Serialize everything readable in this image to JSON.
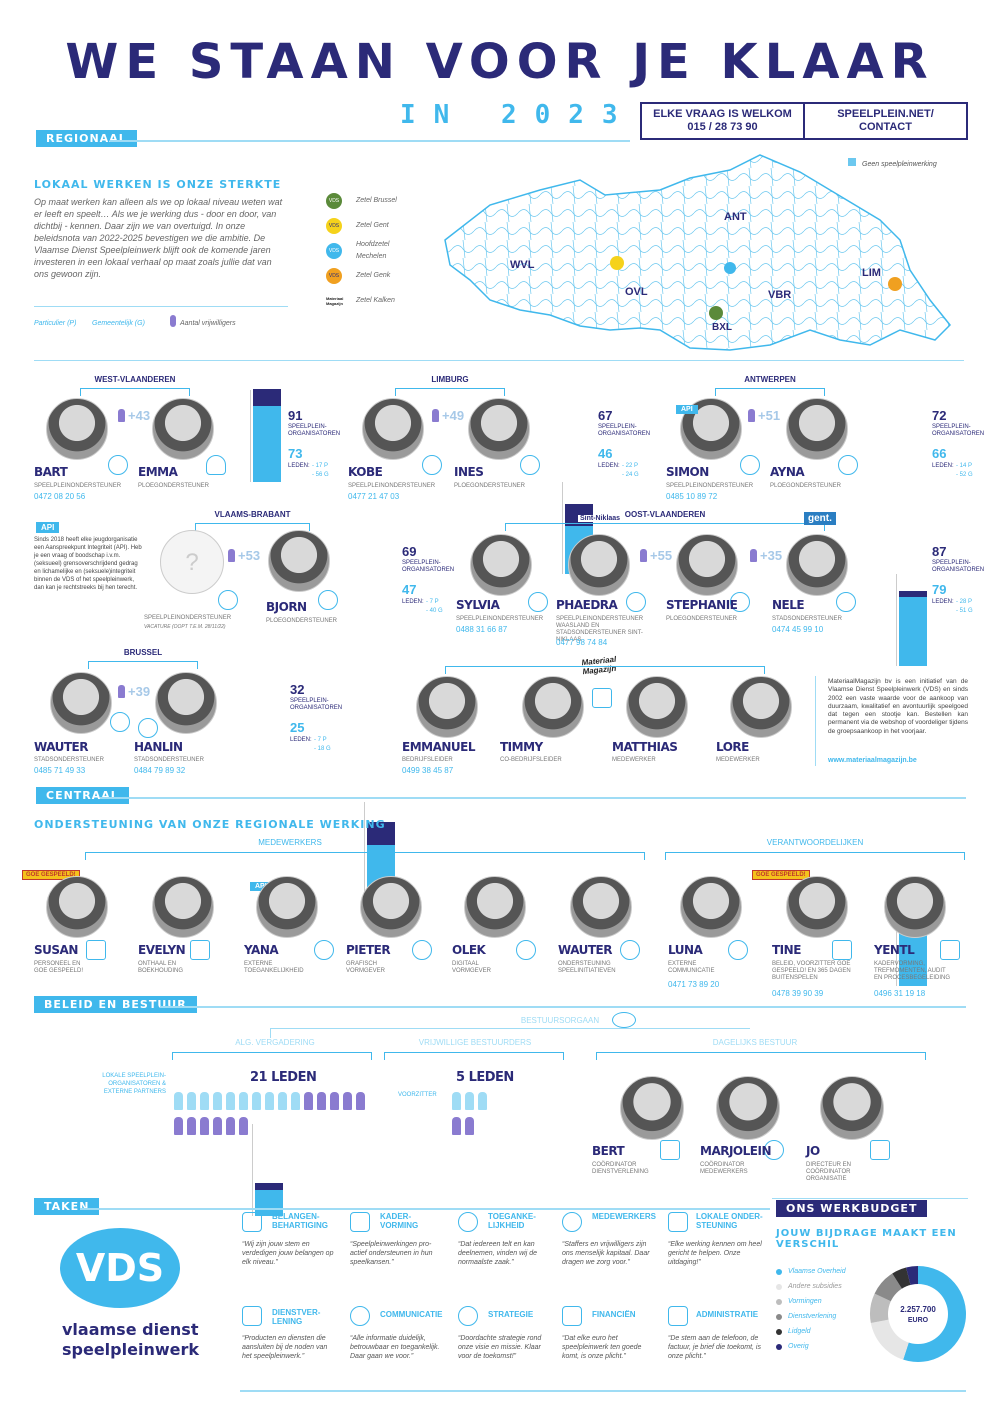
{
  "header": {
    "title": "WE STAAN VOOR JE KLAAR",
    "year": "IN 2023",
    "contact_left": "ELKE VRAAG IS WELKOM",
    "phone": "015 / 28 73 90",
    "contact_right": "SPEELPLEIN.NET/",
    "contact_right2": "CONTACT"
  },
  "regional": {
    "tag": "REGIONAAL",
    "subtitle": "LOKAAL WERKEN IS ONZE STERKTE",
    "intro": "Op maat werken kan alleen als we op lokaal niveau weten wat er leeft en speelt… Als we je werking dus - door en door, van dichtbij - kennen. Daar zijn we van overtuigd. In onze beleidsnota van 2022-2025 bevestigen we die ambitie. De Vlaamse Dienst Speelpleinwerk blijft ook de komende jaren investeren in een lokaal verhaal op maat zoals jullie dat van ons gewoon zijn.",
    "legend_p": "Particulier (P)",
    "legend_g": "Gemeentelijk (G)",
    "legend_vol": "Aantal vrijwilligers"
  },
  "map": {
    "no_speelplein": "Geen speelpleinwerking",
    "seats": [
      "Zetel Brussel",
      "Zetel Gent",
      "Hoofdzetel Mechelen",
      "Zetel Genk",
      "Zetel Kalken"
    ],
    "provinces": [
      "WVL",
      "OVL",
      "ANT",
      "VBR",
      "LIM",
      "BXL"
    ],
    "seat_logos": [
      "VDS",
      "VDS",
      "VDS",
      "VDS",
      "Materiaal Magazijn"
    ]
  },
  "regions": {
    "wvl": {
      "name": "WEST-VLAANDEREN",
      "plus": "+43",
      "p1": {
        "name": "BART",
        "role": "SPEELPLEINONDERSTEUNER",
        "phone": "0472 08 20 56"
      },
      "p2": {
        "name": "EMMA",
        "role": "PLOEGONDERSTEUNER"
      },
      "orgs": "91",
      "members": "73",
      "label": "SPEELPLEIN-ORGANISATOREN",
      "leden": "LEDEN:",
      "p": "- 17 P",
      "g": "- 56 G"
    },
    "lim": {
      "name": "LIMBURG",
      "plus": "+49",
      "p1": {
        "name": "KOBE",
        "role": "SPEELPLEINONDERSTEUNER",
        "phone": "0477 21 47 03"
      },
      "p2": {
        "name": "INES",
        "role": "PLOEGONDERSTEUNER"
      },
      "orgs": "67",
      "members": "46",
      "label": "SPEELPLEIN-ORGANISATOREN",
      "leden": "LEDEN:",
      "p": "- 22 P",
      "g": "- 24 G"
    },
    "ant": {
      "name": "ANTWERPEN",
      "plus": "+51",
      "p1": {
        "name": "SIMON",
        "role": "SPEELPLEINONDERSTEUNER",
        "phone": "0485 10 89 72"
      },
      "p2": {
        "name": "AYNA",
        "role": "PLOEGONDERSTEUNER"
      },
      "orgs": "72",
      "members": "66",
      "label": "SPEELPLEIN-ORGANISATOREN",
      "leden": "LEDEN:",
      "p": "- 14 P",
      "g": "- 52 G",
      "api": "API"
    },
    "vbr": {
      "name": "VLAAMS-BRABANT",
      "plus": "+53",
      "p0": {
        "role": "SPEELPLEINONDERSTEUNER",
        "note": "VACATURE (OOPT T.E.M. 28/11/22)"
      },
      "p2": {
        "name": "BJORN",
        "role": "PLOEGONDERSTEUNER"
      },
      "orgs": "69",
      "members": "47",
      "label": "SPEELPLEIN-ORGANISATOREN",
      "leden": "LEDEN:",
      "p": "- 7 P",
      "g": "- 40 G"
    },
    "ovl": {
      "name": "OOST-VLAANDEREN",
      "plus1": "+55",
      "plus2": "+35",
      "p1": {
        "name": "SYLVIA",
        "role": "SPEELPLEINONDERSTEUNER",
        "phone": "0488 31 66 87"
      },
      "p2": {
        "name": "PHAEDRA",
        "role": "SPEELPLEINONDERSTEUNER WAASLAND EN STADSONDERSTEUNER SINT-NIKLAAS",
        "phone": "0477 98 74 84"
      },
      "p3": {
        "name": "STEPHANIE",
        "role": "PLOEGONDERSTEUNER"
      },
      "p4": {
        "name": "NELE",
        "role": "STADSONDERSTEUNER",
        "phone": "0474 45 99 10"
      },
      "orgs": "87",
      "members": "79",
      "label": "SPEELPLEIN-ORGANISATOREN",
      "leden": "LEDEN:",
      "p": "- 28 P",
      "g": "- 51 G",
      "logo1": "Sint-Niklaas",
      "logo2": "gent."
    },
    "bru": {
      "name": "BRUSSEL",
      "plus": "+39",
      "p1": {
        "name": "WAUTER",
        "role": "STADSONDERSTEUNER",
        "phone": "0485 71 49 33"
      },
      "p2": {
        "name": "HANLIN",
        "role": "STADSONDERSTEUNER",
        "phone": "0484 79 89 32"
      },
      "orgs": "32",
      "members": "25",
      "label": "SPEELPLEIN-ORGANISATOREN",
      "leden": "LEDEN:",
      "p": "- 7 P",
      "g": "- 18 G"
    }
  },
  "api_box": {
    "tag": "API",
    "text": "Sinds 2018 heeft elke jeugdorganisatie een Aanspreekpunt Integriteit (API). Heb je een vraag of boodschap i.v.m. (seksueel) grensoverschrijdend gedrag en lichamelijke en (seksuele)integriteit binnen de VDS of het speelpleinwerk, dan kan je rechtstreeks bij hen terecht."
  },
  "mm": {
    "logo": "Materiaal Magazijn",
    "people": [
      {
        "name": "EMMANUEL",
        "role": "BEDRIJFSLEIDER",
        "phone": "0499 38 45 87"
      },
      {
        "name": "TIMMY",
        "role": "CO-BEDRIJFSLEIDER"
      },
      {
        "name": "MATTHIAS",
        "role": "MEDEWERKER"
      },
      {
        "name": "LORE",
        "role": "MEDEWERKER"
      }
    ],
    "text": "MateriaalMagazijn bv is een initiatief van de Vlaamse Dienst Speelpleinwerk (VDS) en sinds 2002 een vaste waarde voor de aankoop van duurzaam, kwalitatief en avontuurlijk speelgoed dat tegen een stootje kan. Bestellen kan permanent via de webshop of voordeliger tijdens de groepsaankoop in het voorjaar.",
    "url": "www.materiaalmagazijn.be"
  },
  "central": {
    "tag": "CENTRAAL",
    "subtitle": "ONDERSTEUNING VAN ONZE REGIONALE WERKING",
    "medewerkers": "MEDEWERKERS",
    "verantwoordelijken": "VERANTWOORDELIJKEN",
    "badge": "GOE GESPEELD!",
    "api": "API",
    "people": [
      {
        "name": "SUSAN",
        "role": "PERSONEEL EN GOE GESPEELD!"
      },
      {
        "name": "EVELYN",
        "role": "ONTHAAL EN BOEKHOUDING"
      },
      {
        "name": "YANA",
        "role": "EXTERNE TOEGANKELIJKHEID"
      },
      {
        "name": "PIETER",
        "role": "GRAFISCH VORMGEVER"
      },
      {
        "name": "OLEK",
        "role": "DIGITAAL VORMGEVER"
      },
      {
        "name": "WAUTER",
        "role": "ONDERSTEUNING SPEELINITIATIEVEN"
      },
      {
        "name": "LUNA",
        "role": "EXTERNE COMMUNICATIE",
        "phone": "0471 73 89 20"
      },
      {
        "name": "TINE",
        "role": "BELEID, VOORZITTER GOE GESPEELD! EN 365 DAGEN BUITENSPELEN",
        "phone": "0478 39 90 39"
      },
      {
        "name": "YENTL",
        "role": "KADERVORMING, TREFMOMENTEN, AUDIT EN PROCESBEGELEIDING",
        "phone": "0496 31 19 18"
      }
    ]
  },
  "board": {
    "tag": "BELEID EN BESTUUR",
    "organ": "BESTUURSORGAAN",
    "alg": "ALG. VERGADERING",
    "vrij": "VRIJWILLIGE BESTUURDERS",
    "dag": "DAGELIJKS BESTUUR",
    "leden21": "21 LEDEN",
    "leden5": "5 LEDEN",
    "alg_note": "LOKALE SPEELPLEIN-ORGANISATOREN & EXTERNE PARTNERS",
    "voorzitter": "VOORZITTER",
    "people": [
      {
        "name": "BERT",
        "role": "COÖRDINATOR DIENSTVERLENING"
      },
      {
        "name": "MARJOLEIN",
        "role": "COÖRDINATOR MEDEWERKERS"
      },
      {
        "name": "JO",
        "role": "DIRECTEUR EN COÖRDINATOR ORGANISATIE"
      }
    ]
  },
  "tasks": {
    "tag": "TAKEN",
    "logo": "VDS",
    "logo_text1": "vlaamse dienst",
    "logo_text2": "speelpleinwerk",
    "items": [
      {
        "title": "BELANGEN-BEHARTIGING",
        "text": "“Wij zijn jouw stem en verdedigen jouw belangen op elk niveau.”"
      },
      {
        "title": "KADER-VORMING",
        "text": "“Speelpleinwerkingen pro-actief ondersteunen in hun speelkansen.”"
      },
      {
        "title": "TOEGANKE-LIJKHEID",
        "text": "“Dat iedereen telt en kan deelnemen, vinden wij de normaalste zaak.”"
      },
      {
        "title": "MEDEWERKERS",
        "text": "“Staffers en vrijwilligers zijn ons menselijk kapitaal. Daar dragen we zorg voor.”"
      },
      {
        "title": "LOKALE ONDER-STEUNING",
        "text": "“Elke werking kennen om heel gericht te helpen. Onze uitdaging!”"
      },
      {
        "title": "DIENSTVER-LENING",
        "text": "“Producten en diensten die aansluiten bij de noden van het speelpleinwerk.”"
      },
      {
        "title": "COMMUNICATIE",
        "text": "“Alle informatie duidelijk, betrouwbaar en toegankelijk. Daar gaan we voor.”"
      },
      {
        "title": "STRATEGIE",
        "text": "“Doordachte strategie rond onze visie en missie. Klaar voor de toekomst!”"
      },
      {
        "title": "FINANCIËN",
        "text": "“Dat elke euro het speelpleinwerk ten goede komt, is onze plicht.”"
      },
      {
        "title": "ADMINISTRATIE",
        "text": "“De stem aan de telefoon, de factuur, je brief die toekomt, is onze plicht.”"
      }
    ]
  },
  "budget": {
    "tag": "ONS WERKBUDGET",
    "subtitle": "JOUW BIJDRAGE MAAKT EEN VERSCHIL",
    "center": "2.257.700",
    "center2": "EURO",
    "legend": [
      {
        "label": "Vlaamse Overheid",
        "color": "#40b8ec",
        "share": 0.55
      },
      {
        "label": "Andere subsidies",
        "color": "#e6e6e6",
        "share": 0.17
      },
      {
        "label": "Vormingen",
        "color": "#bdbdbd",
        "share": 0.1
      },
      {
        "label": "Dienstverlening",
        "color": "#8a8a8a",
        "share": 0.09
      },
      {
        "label": "Lidgeld",
        "color": "#333333",
        "share": 0.05
      },
      {
        "label": "Overig",
        "color": "#2b2a78",
        "share": 0.04
      }
    ]
  }
}
